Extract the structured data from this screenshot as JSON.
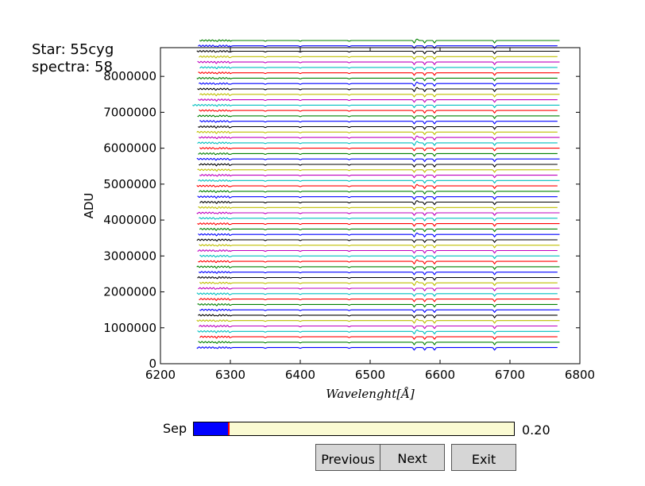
{
  "info": {
    "star_text": "Star: 55cyg",
    "spectra_text": "spectra: 58"
  },
  "chart_data": {
    "type": "line",
    "xlabel": "Wavelenght[Å]",
    "ylabel": "ADU",
    "xlim": [
      6200,
      6800
    ],
    "ylim": [
      0,
      8800000
    ],
    "x_ticks": [
      6200,
      6300,
      6400,
      6500,
      6600,
      6700,
      6800
    ],
    "y_ticks": [
      0,
      1000000,
      2000000,
      3000000,
      4000000,
      5000000,
      6000000,
      7000000,
      8000000
    ],
    "x_tick_labels": [
      "6200",
      "6300",
      "6400",
      "6500",
      "6600",
      "6700",
      "6800"
    ],
    "y_tick_labels": [
      "0",
      "1000000",
      "2000000",
      "3000000",
      "4000000",
      "5000000",
      "6000000",
      "7000000",
      "8000000"
    ],
    "grid": false,
    "n_series": 58,
    "series_x_range": [
      6255,
      6770
    ],
    "series_offset_step": 150000,
    "series_first_offset": 450000,
    "color_cycle": [
      "#0000ff",
      "#008000",
      "#ff0000",
      "#00bfbf",
      "#bf00bf",
      "#bfbf00",
      "#000000"
    ],
    "absorption_lines": [
      6280,
      6300,
      6350,
      6400,
      6470,
      6563,
      6578,
      6592,
      6678
    ]
  },
  "controls": {
    "slider_label": "Sep",
    "slider_value_text": "0.20",
    "slider_fraction": 0.11,
    "slider_fill_color": "#0000ff",
    "slider_handle_color": "#ff0000",
    "buttons": {
      "previous": "Previous",
      "next": "Next",
      "exit": "Exit"
    }
  }
}
